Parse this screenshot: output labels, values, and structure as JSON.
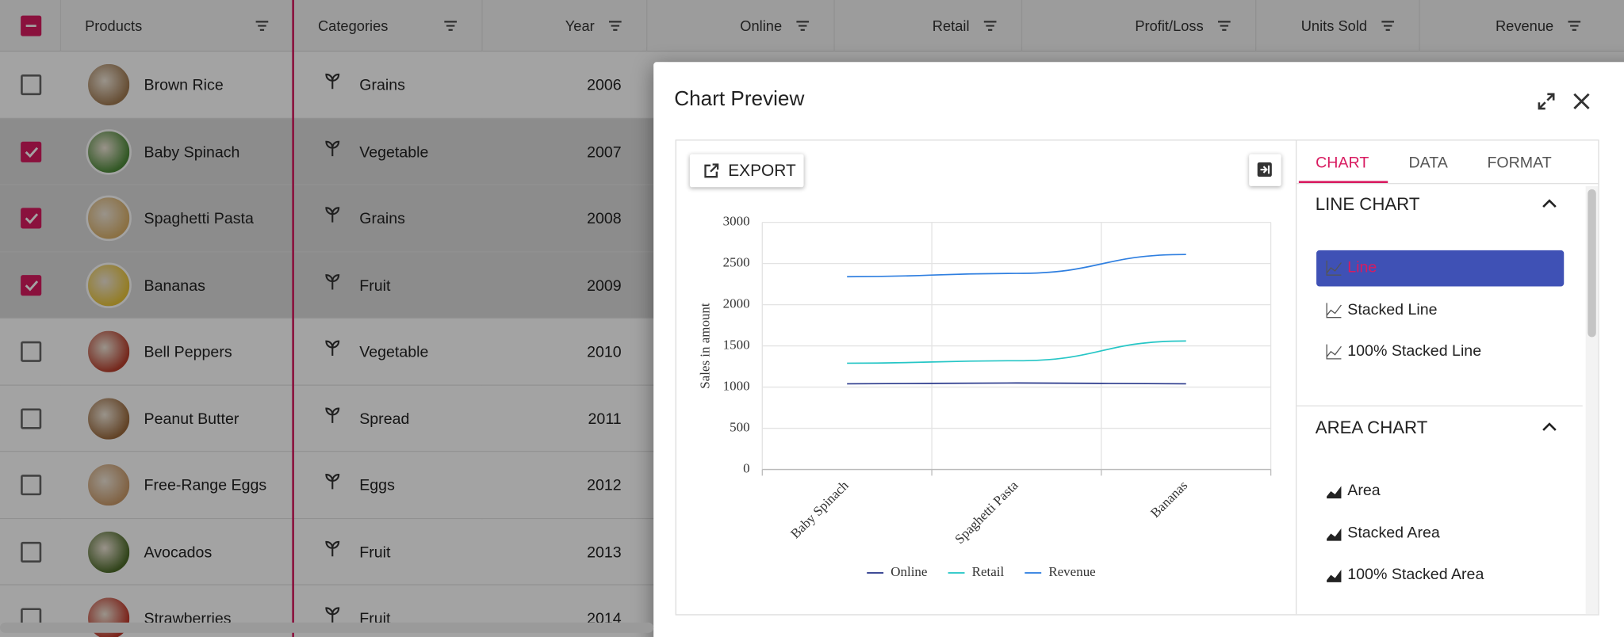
{
  "grid": {
    "columns": [
      "Products",
      "Categories",
      "Year",
      "Online",
      "Retail",
      "Profit/Loss",
      "Units Sold",
      "Revenue"
    ],
    "rows": [
      {
        "product": "Brown Rice",
        "category": "Grains",
        "year": 2006,
        "selected": false
      },
      {
        "product": "Baby Spinach",
        "category": "Vegetable",
        "year": 2007,
        "selected": true
      },
      {
        "product": "Spaghetti Pasta",
        "category": "Grains",
        "year": 2008,
        "selected": true
      },
      {
        "product": "Bananas",
        "category": "Fruit",
        "year": 2009,
        "selected": true
      },
      {
        "product": "Bell Peppers",
        "category": "Vegetable",
        "year": 2010,
        "selected": false
      },
      {
        "product": "Peanut Butter",
        "category": "Spread",
        "year": 2011,
        "selected": false
      },
      {
        "product": "Free-Range Eggs",
        "category": "Eggs",
        "year": 2012,
        "selected": false
      },
      {
        "product": "Avocados",
        "category": "Fruit",
        "year": 2013,
        "selected": false
      },
      {
        "product": "Strawberries",
        "category": "Fruit",
        "year": 2014,
        "selected": false
      }
    ]
  },
  "dialog": {
    "title": "Chart Preview",
    "export": "EXPORT",
    "tabs": [
      "CHART",
      "DATA",
      "FORMAT"
    ],
    "active_tab": 0,
    "sections": [
      {
        "title": "LINE CHART",
        "items": [
          {
            "label": "Line",
            "selected": true
          },
          {
            "label": "Stacked Line",
            "selected": false
          },
          {
            "label": "100% Stacked Line",
            "selected": false
          }
        ]
      },
      {
        "title": "AREA CHART",
        "items": [
          {
            "label": "Area",
            "selected": false
          },
          {
            "label": "Stacked Area",
            "selected": false
          },
          {
            "label": "100% Stacked Area",
            "selected": false
          }
        ]
      }
    ]
  },
  "chart_data": {
    "type": "line",
    "y_label": "Sales in amount",
    "categories": [
      "Baby Spinach",
      "Spaghetti Pasta",
      "Bananas"
    ],
    "series": [
      {
        "name": "Online",
        "color": "#2b3a8c",
        "values": [
          1040,
          1050,
          1040
        ]
      },
      {
        "name": "Retail",
        "color": "#26c6c6",
        "values": [
          1290,
          1320,
          1560
        ]
      },
      {
        "name": "Revenue",
        "color": "#2f7fe0",
        "values": [
          2340,
          2380,
          2610
        ]
      }
    ],
    "ylim": [
      0,
      3000
    ],
    "yticks": [
      0,
      500,
      1000,
      1500,
      2000,
      2500,
      3000
    ],
    "grid": true
  }
}
